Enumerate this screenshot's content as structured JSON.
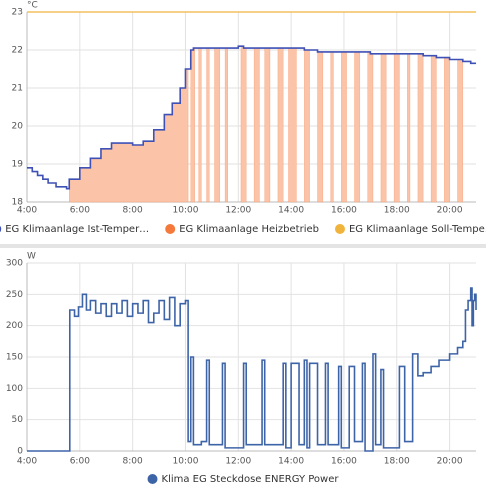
{
  "chart_data": [
    {
      "type": "line",
      "y_unit": "°C",
      "xlim": [
        4,
        21
      ],
      "ylim": [
        18,
        23
      ],
      "xticks": [
        {
          "value": 4,
          "label": "4:00"
        },
        {
          "value": 6,
          "label": "6:00"
        },
        {
          "value": 8,
          "label": "8:00"
        },
        {
          "value": 10,
          "label": "10:00"
        },
        {
          "value": 12,
          "label": "12:00"
        },
        {
          "value": 14,
          "label": "14:00"
        },
        {
          "value": 16,
          "label": "16:00"
        },
        {
          "value": 18,
          "label": "18:00"
        },
        {
          "value": 20,
          "label": "20:00"
        }
      ],
      "yticks": [
        18,
        19,
        20,
        21,
        22,
        23
      ],
      "grid": true,
      "series": [
        {
          "name": "EG Klimaanlage Ist-Temper…",
          "color": "#3f51b5",
          "step": true,
          "x": [
            4.0,
            4.2,
            4.4,
            4.6,
            4.8,
            5.1,
            5.5,
            5.6,
            6.0,
            6.4,
            6.8,
            7.2,
            7.6,
            8.0,
            8.4,
            8.8,
            9.2,
            9.5,
            9.8,
            10.0,
            10.2,
            10.3,
            11.0,
            12.0,
            12.2,
            13.0,
            14.0,
            14.5,
            15.0,
            16.0,
            17.0,
            18.0,
            19.0,
            19.5,
            20.0,
            20.5,
            20.8,
            21.0
          ],
          "values": [
            18.9,
            18.8,
            18.7,
            18.6,
            18.5,
            18.4,
            18.35,
            18.6,
            18.9,
            19.15,
            19.4,
            19.55,
            19.55,
            19.5,
            19.6,
            19.9,
            20.3,
            20.6,
            21.0,
            21.5,
            22.0,
            22.05,
            22.05,
            22.1,
            22.05,
            22.05,
            22.05,
            22.0,
            21.95,
            21.95,
            21.9,
            21.9,
            21.85,
            21.8,
            21.75,
            21.7,
            21.65,
            21.65
          ]
        },
        {
          "name": "EG Klimaanlage Heizbetrieb",
          "color": "#f4793b",
          "fill": "#fbc4a8",
          "shade_under": 0,
          "x": [
            4.0,
            5.6,
            10.1,
            10.2,
            10.35,
            10.5,
            10.6,
            10.8,
            10.9,
            11.1,
            11.3,
            11.5,
            11.6,
            12.1,
            12.3,
            12.6,
            12.8,
            13.0,
            13.2,
            13.5,
            13.7,
            13.9,
            14.2,
            14.5,
            14.7,
            15.0,
            15.2,
            15.5,
            15.6,
            15.9,
            16.1,
            16.4,
            16.6,
            16.9,
            17.1,
            17.4,
            17.6,
            17.9,
            18.1,
            18.4,
            18.5,
            18.8,
            19.0,
            19.3,
            19.5,
            19.8,
            20.0,
            20.3,
            20.5,
            21.0
          ],
          "values": [
            0,
            1,
            0,
            1,
            0,
            1,
            0,
            1,
            0,
            1,
            0,
            1,
            0,
            1,
            0,
            1,
            0,
            1,
            0,
            1,
            0,
            1,
            0,
            1,
            0,
            1,
            0,
            1,
            0,
            1,
            0,
            1,
            0,
            1,
            0,
            1,
            0,
            1,
            0,
            1,
            0,
            1,
            0,
            1,
            0,
            1,
            0,
            1,
            0,
            0
          ]
        },
        {
          "name": "EG Klimaanlage Soll-Tempe…",
          "color": "#f0b43c",
          "step": true,
          "x": [
            4.0,
            21.0
          ],
          "values": [
            23,
            23
          ]
        }
      ]
    },
    {
      "type": "line",
      "y_unit": "W",
      "xlim": [
        4,
        21
      ],
      "ylim": [
        0,
        300
      ],
      "xticks": [
        {
          "value": 4,
          "label": "4:00"
        },
        {
          "value": 6,
          "label": "6:00"
        },
        {
          "value": 8,
          "label": "8:00"
        },
        {
          "value": 10,
          "label": "10:00"
        },
        {
          "value": 12,
          "label": "12:00"
        },
        {
          "value": 14,
          "label": "14:00"
        },
        {
          "value": 16,
          "label": "16:00"
        },
        {
          "value": 18,
          "label": "18:00"
        },
        {
          "value": 20,
          "label": "20:00"
        }
      ],
      "yticks": [
        0,
        50,
        100,
        150,
        200,
        250,
        300
      ],
      "grid": true,
      "series": [
        {
          "name": "Klima EG Steckdose ENERGY Power",
          "color": "#3e64a8",
          "step": true,
          "x": [
            4.0,
            5.6,
            5.62,
            5.8,
            5.95,
            6.1,
            6.25,
            6.4,
            6.6,
            6.8,
            7.0,
            7.2,
            7.4,
            7.6,
            7.8,
            8.0,
            8.2,
            8.4,
            8.6,
            8.8,
            9.0,
            9.2,
            9.4,
            9.6,
            9.8,
            10.0,
            10.1,
            10.2,
            10.3,
            10.6,
            10.8,
            10.9,
            11.4,
            11.5,
            12.2,
            12.3,
            12.9,
            13.0,
            13.7,
            13.8,
            14.0,
            14.3,
            14.5,
            14.6,
            14.7,
            15.0,
            15.3,
            15.4,
            15.8,
            15.9,
            16.2,
            16.4,
            16.7,
            16.8,
            17.1,
            17.2,
            17.4,
            17.5,
            18.1,
            18.3,
            18.6,
            18.8,
            19.0,
            19.3,
            19.6,
            20.0,
            20.3,
            20.5,
            20.6,
            20.7,
            20.8,
            20.85,
            20.9,
            20.95,
            21.0
          ],
          "values": [
            0,
            0,
            225,
            215,
            230,
            250,
            225,
            240,
            220,
            235,
            215,
            235,
            220,
            240,
            215,
            235,
            220,
            240,
            205,
            220,
            240,
            210,
            245,
            200,
            235,
            240,
            15,
            150,
            10,
            15,
            145,
            10,
            140,
            5,
            140,
            10,
            145,
            10,
            140,
            5,
            140,
            10,
            145,
            5,
            140,
            10,
            140,
            10,
            135,
            5,
            135,
            15,
            140,
            0,
            155,
            10,
            130,
            5,
            135,
            15,
            155,
            120,
            125,
            135,
            145,
            155,
            165,
            175,
            225,
            240,
            260,
            200,
            240,
            250,
            225
          ]
        }
      ]
    }
  ]
}
